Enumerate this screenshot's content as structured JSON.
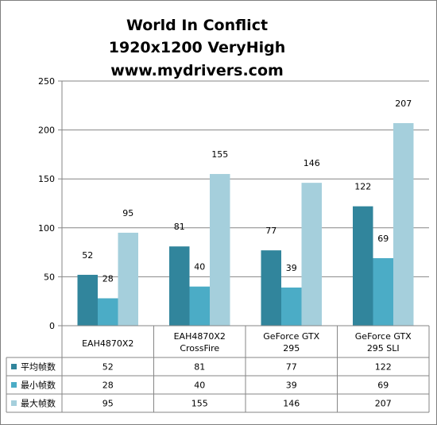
{
  "chart_data": {
    "type": "bar",
    "title": [
      "World In Conflict",
      "1920x1200 VeryHigh",
      "www.mydrivers.com"
    ],
    "categories": [
      [
        "EAH4870X2"
      ],
      [
        "EAH4870X2",
        "CrossFire"
      ],
      [
        "GeForce GTX",
        "295"
      ],
      [
        "GeForce GTX",
        "295 SLI"
      ]
    ],
    "ylim": [
      0,
      250
    ],
    "yticks": [
      0,
      50,
      100,
      150,
      200,
      250
    ],
    "grid": true,
    "legend": "data-table",
    "series": [
      {
        "name": "平均帧数",
        "color": "#31859c",
        "values": [
          52,
          81,
          77,
          122
        ]
      },
      {
        "name": "最小帧数",
        "color": "#4bacc6",
        "values": [
          28,
          40,
          39,
          69
        ]
      },
      {
        "name": "最大帧数",
        "color": "#a5cfdc",
        "values": [
          95,
          155,
          146,
          207
        ]
      }
    ]
  }
}
